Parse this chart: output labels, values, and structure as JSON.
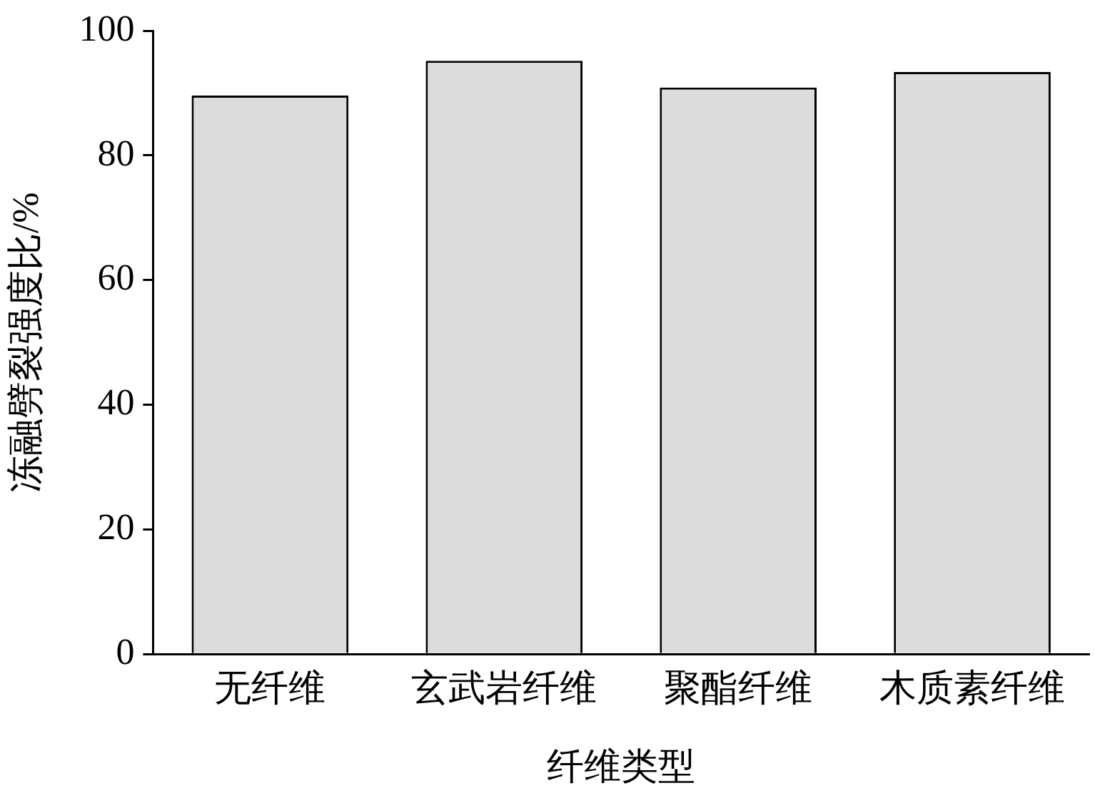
{
  "chart_data": {
    "type": "bar",
    "xlabel": "纤维类型",
    "ylabel": "冻融劈裂强度比/%",
    "categories": [
      "无纤维",
      "玄武岩纤维",
      "聚酯纤维",
      "木质素纤维"
    ],
    "values": [
      89.6,
      95.2,
      90.9,
      93.4
    ],
    "color": "#dcdcdc",
    "ylim": [
      0,
      100
    ],
    "yticks": [
      0,
      20,
      40,
      60,
      80,
      100
    ],
    "grid": false,
    "legend": false
  }
}
